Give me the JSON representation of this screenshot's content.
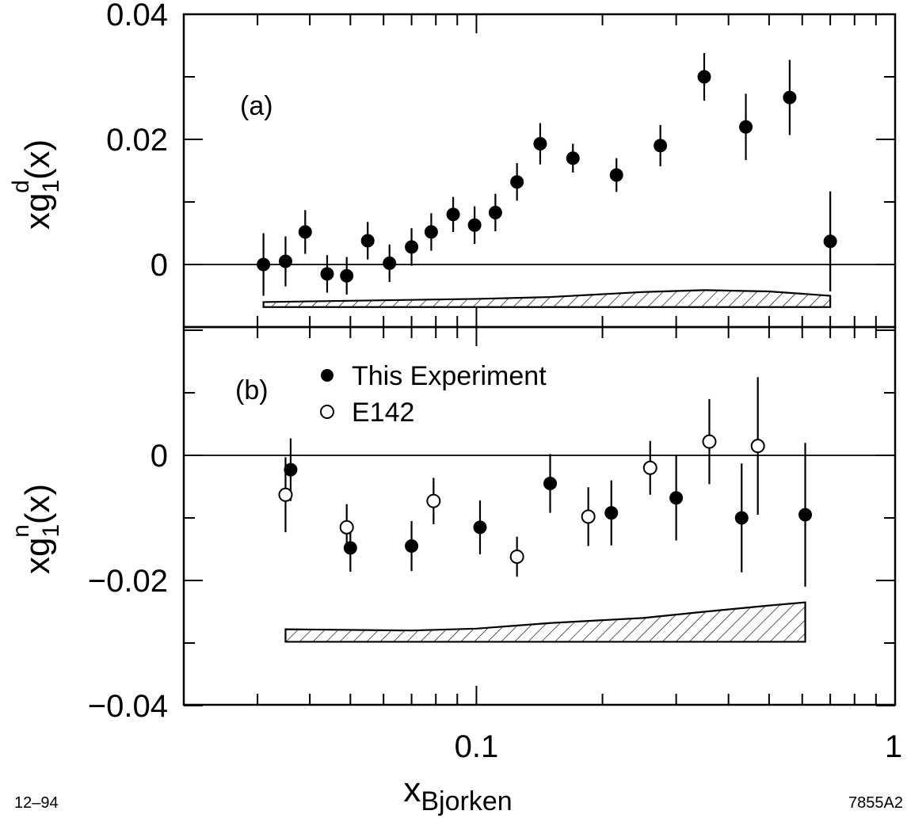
{
  "chart_data": [
    {
      "type": "scatter",
      "panel_label": "(a)",
      "ylabel": {
        "base": "xg",
        "sub": "1",
        "sup": "d",
        "suffix": "(x)"
      },
      "xlabel": {
        "base": "x",
        "sub": "Bjorken"
      },
      "xscale": "log",
      "xlim": [
        0.02,
        1
      ],
      "ylim": [
        -0.01,
        0.04
      ],
      "y_ticks": [
        0,
        0.02,
        0.04
      ],
      "y_tick_labels": [
        "0",
        "0.02",
        "0.04"
      ],
      "grid": false,
      "zero_line": true,
      "series": [
        {
          "marker": "filled-circle",
          "points": [
            {
              "x": 0.031,
              "y": 0.0,
              "err": 0.005
            },
            {
              "x": 0.035,
              "y": 0.0005,
              "err": 0.004
            },
            {
              "x": 0.039,
              "y": 0.0052,
              "err": 0.0035
            },
            {
              "x": 0.044,
              "y": -0.0015,
              "err": 0.003
            },
            {
              "x": 0.049,
              "y": -0.0018,
              "err": 0.003
            },
            {
              "x": 0.055,
              "y": 0.0038,
              "err": 0.003
            },
            {
              "x": 0.062,
              "y": 0.0002,
              "err": 0.003
            },
            {
              "x": 0.07,
              "y": 0.0028,
              "err": 0.003
            },
            {
              "x": 0.078,
              "y": 0.0052,
              "err": 0.003
            },
            {
              "x": 0.088,
              "y": 0.008,
              "err": 0.0028
            },
            {
              "x": 0.099,
              "y": 0.0063,
              "err": 0.003
            },
            {
              "x": 0.111,
              "y": 0.0083,
              "err": 0.003
            },
            {
              "x": 0.125,
              "y": 0.0132,
              "err": 0.003
            },
            {
              "x": 0.142,
              "y": 0.0193,
              "err": 0.0033
            },
            {
              "x": 0.17,
              "y": 0.017,
              "err": 0.0023
            },
            {
              "x": 0.216,
              "y": 0.0143,
              "err": 0.0027
            },
            {
              "x": 0.275,
              "y": 0.019,
              "err": 0.0033
            },
            {
              "x": 0.35,
              "y": 0.03,
              "err": 0.0038
            },
            {
              "x": 0.44,
              "y": 0.022,
              "err": 0.0053
            },
            {
              "x": 0.56,
              "y": 0.0267,
              "err": 0.006
            },
            {
              "x": 0.7,
              "y": 0.0037,
              "err": 0.008
            }
          ]
        }
      ],
      "systematic_band": {
        "x_range": [
          0.031,
          0.7
        ],
        "lower": -0.0068,
        "upper": [
          {
            "x": 0.031,
            "y": -0.006
          },
          {
            "x": 0.1,
            "y": -0.0055
          },
          {
            "x": 0.15,
            "y": -0.0052
          },
          {
            "x": 0.25,
            "y": -0.0044
          },
          {
            "x": 0.35,
            "y": -0.0041
          },
          {
            "x": 0.5,
            "y": -0.0043
          },
          {
            "x": 0.7,
            "y": -0.005
          }
        ]
      }
    },
    {
      "type": "scatter",
      "panel_label": "(b)",
      "ylabel": {
        "base": "xg",
        "sub": "1",
        "sup": "n",
        "suffix": "(x)"
      },
      "xlabel": {
        "base": "x",
        "sub": "Bjorken"
      },
      "xscale": "log",
      "xlim": [
        0.02,
        1
      ],
      "x_ticks": [
        0.1,
        1
      ],
      "x_tick_labels": [
        "0.1",
        "1"
      ],
      "ylim": [
        -0.04,
        0.02
      ],
      "y_ticks": [
        0,
        -0.02,
        -0.04
      ],
      "y_tick_labels": [
        "0",
        "−0.02",
        "−0.04"
      ],
      "grid": false,
      "zero_line": true,
      "legend_placement": "top",
      "series": [
        {
          "name": "This Experiment",
          "marker": "filled-circle",
          "points": [
            {
              "x": 0.036,
              "y": -0.0023,
              "err": 0.005
            },
            {
              "x": 0.05,
              "y": -0.0148,
              "err": 0.0038
            },
            {
              "x": 0.07,
              "y": -0.0145,
              "err": 0.004
            },
            {
              "x": 0.102,
              "y": -0.0115,
              "err": 0.0043
            },
            {
              "x": 0.15,
              "y": -0.0045,
              "err": 0.0047
            },
            {
              "x": 0.21,
              "y": -0.0092,
              "err": 0.0052
            },
            {
              "x": 0.3,
              "y": -0.0068,
              "err": 0.0068
            },
            {
              "x": 0.43,
              "y": -0.01,
              "err": 0.0087
            },
            {
              "x": 0.61,
              "y": -0.0095,
              "err": 0.0115
            }
          ]
        },
        {
          "name": "E142",
          "marker": "open-circle",
          "points": [
            {
              "x": 0.035,
              "y": -0.0063,
              "err": 0.006
            },
            {
              "x": 0.049,
              "y": -0.0115,
              "err": 0.0037
            },
            {
              "x": 0.079,
              "y": -0.0073,
              "err": 0.0037
            },
            {
              "x": 0.125,
              "y": -0.0162,
              "err": 0.0032
            },
            {
              "x": 0.185,
              "y": -0.0098,
              "err": 0.0047
            },
            {
              "x": 0.26,
              "y": -0.002,
              "err": 0.0043
            },
            {
              "x": 0.36,
              "y": 0.0022,
              "err": 0.0068
            },
            {
              "x": 0.47,
              "y": 0.0015,
              "err": 0.011
            }
          ]
        }
      ],
      "systematic_band": {
        "x_range": [
          0.035,
          0.61
        ],
        "lower": -0.0298,
        "upper": [
          {
            "x": 0.035,
            "y": -0.0278
          },
          {
            "x": 0.07,
            "y": -0.028
          },
          {
            "x": 0.1,
            "y": -0.0277
          },
          {
            "x": 0.15,
            "y": -0.0268
          },
          {
            "x": 0.25,
            "y": -0.026
          },
          {
            "x": 0.35,
            "y": -0.025
          },
          {
            "x": 0.5,
            "y": -0.024
          },
          {
            "x": 0.61,
            "y": -0.0235
          }
        ]
      }
    }
  ],
  "figure_text": {
    "date_code": "12–94",
    "figure_id": "7855A2"
  }
}
